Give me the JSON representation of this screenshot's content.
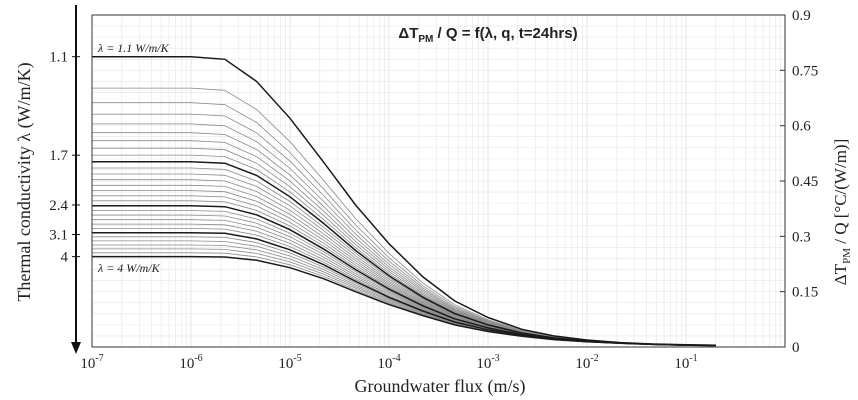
{
  "chart_data": {
    "type": "line",
    "title": "ΔT_PM / Q = f(λ, q, t=24hrs)",
    "title_parts": {
      "delta": "ΔT",
      "sub": "PM",
      "rest": " / Q = f(λ, q, t=24hrs)"
    },
    "xlabel": "Groundwater flux (m/s)",
    "xscale": "log",
    "xlim": [
      1e-07,
      1
    ],
    "xticks": [
      {
        "value": 1e-07,
        "base": "10",
        "exp": "-7"
      },
      {
        "value": 1e-06,
        "base": "10",
        "exp": "-6"
      },
      {
        "value": 1e-05,
        "base": "10",
        "exp": "-5"
      },
      {
        "value": 0.0001,
        "base": "10",
        "exp": "-4"
      },
      {
        "value": 0.001,
        "base": "10",
        "exp": "-3"
      },
      {
        "value": 0.01,
        "base": "10",
        "exp": "-2"
      },
      {
        "value": 0.1,
        "base": "10",
        "exp": "-1"
      }
    ],
    "y2label_parts": {
      "delta": "ΔT",
      "sub": "PM",
      "rest": " / Q [°C/(W/m)]"
    },
    "ylim": [
      0,
      0.9
    ],
    "yticks": [
      "0",
      "0.15",
      "0.3",
      "0.45",
      "0.6",
      "0.75",
      "0.9"
    ],
    "ylabel_left": "Thermal conductivity λ (W/m/K)",
    "left_ticks": [
      {
        "label": "1.1",
        "y": 0.787
      },
      {
        "label": "1.7",
        "y": 0.52
      },
      {
        "label": "2.4",
        "y": 0.385
      },
      {
        "label": "3.1",
        "y": 0.305
      },
      {
        "label": "4",
        "y": 0.245
      }
    ],
    "annotations": [
      {
        "text": "λ = 1.1 W/m/K",
        "x": 1e-07,
        "y": 0.8
      },
      {
        "text": "λ = 4 W/m/K",
        "x": 1e-07,
        "y": 0.215
      }
    ],
    "grid": true,
    "x_values": [
      1e-07,
      1e-06,
      2.2e-06,
      4.6e-06,
      1e-05,
      2.2e-05,
      4.6e-05,
      0.0001,
      0.00022,
      0.00046,
      0.001,
      0.0022,
      0.0046,
      0.01,
      0.022,
      0.046,
      0.1,
      0.2
    ],
    "reference_series": [
      {
        "name": "λ = 1.1 W/m/K",
        "highlight": true,
        "values": [
          0.787,
          0.787,
          0.78,
          0.72,
          0.62,
          0.5,
          0.385,
          0.28,
          0.19,
          0.125,
          0.08,
          0.048,
          0.03,
          0.019,
          0.012,
          0.008,
          0.006,
          0.005
        ]
      },
      {
        "name": "λ = 4 W/m/K",
        "highlight": true,
        "values": [
          0.245,
          0.245,
          0.244,
          0.235,
          0.215,
          0.185,
          0.15,
          0.115,
          0.085,
          0.06,
          0.042,
          0.029,
          0.02,
          0.014,
          0.01,
          0.007,
          0.005,
          0.004
        ]
      }
    ],
    "family": {
      "count": 30,
      "highlight_indices": [
        0,
        9,
        17,
        23,
        29
      ],
      "description_levels": "30 curves between lambda 1.1 and 4 W/m/K, interpolated between the two reference series"
    },
    "colors": {
      "highlight": "#1a1a1a",
      "normal": "#8a8a8a",
      "grid": "#e6e6e6"
    }
  }
}
